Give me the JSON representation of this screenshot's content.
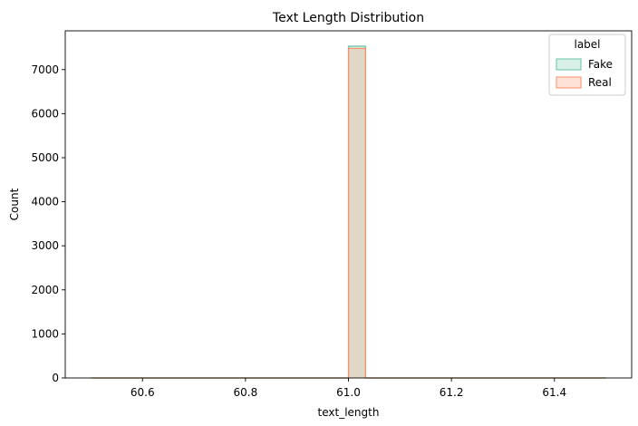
{
  "chart_data": {
    "type": "histogram",
    "title": "Text Length Distribution",
    "xlabel": "text_length",
    "ylabel": "Count",
    "xlim": [
      60.45,
      61.55
    ],
    "ylim": [
      0,
      7880
    ],
    "x_ticks": [
      60.6,
      60.8,
      61.0,
      61.2,
      61.4
    ],
    "x_tick_labels": [
      "60.6",
      "60.8",
      "61.0",
      "61.2",
      "61.4"
    ],
    "y_ticks": [
      0,
      1000,
      2000,
      3000,
      4000,
      5000,
      6000,
      7000
    ],
    "y_tick_labels": [
      "0",
      "1000",
      "2000",
      "3000",
      "4000",
      "5000",
      "6000",
      "7000"
    ],
    "data_range": [
      60.5,
      61.5
    ],
    "bin_width": 0.0333,
    "grid": false,
    "legend": {
      "title": "label",
      "placement": "top-right"
    },
    "series": [
      {
        "name": "Fake",
        "color": "#66c2a5",
        "bins": [
          {
            "x0": 61.0,
            "x1": 61.0333,
            "count": 7530
          }
        ]
      },
      {
        "name": "Real",
        "color": "#fc8d62",
        "bins": [
          {
            "x0": 61.0,
            "x1": 61.0333,
            "count": 7480
          }
        ]
      }
    ]
  }
}
